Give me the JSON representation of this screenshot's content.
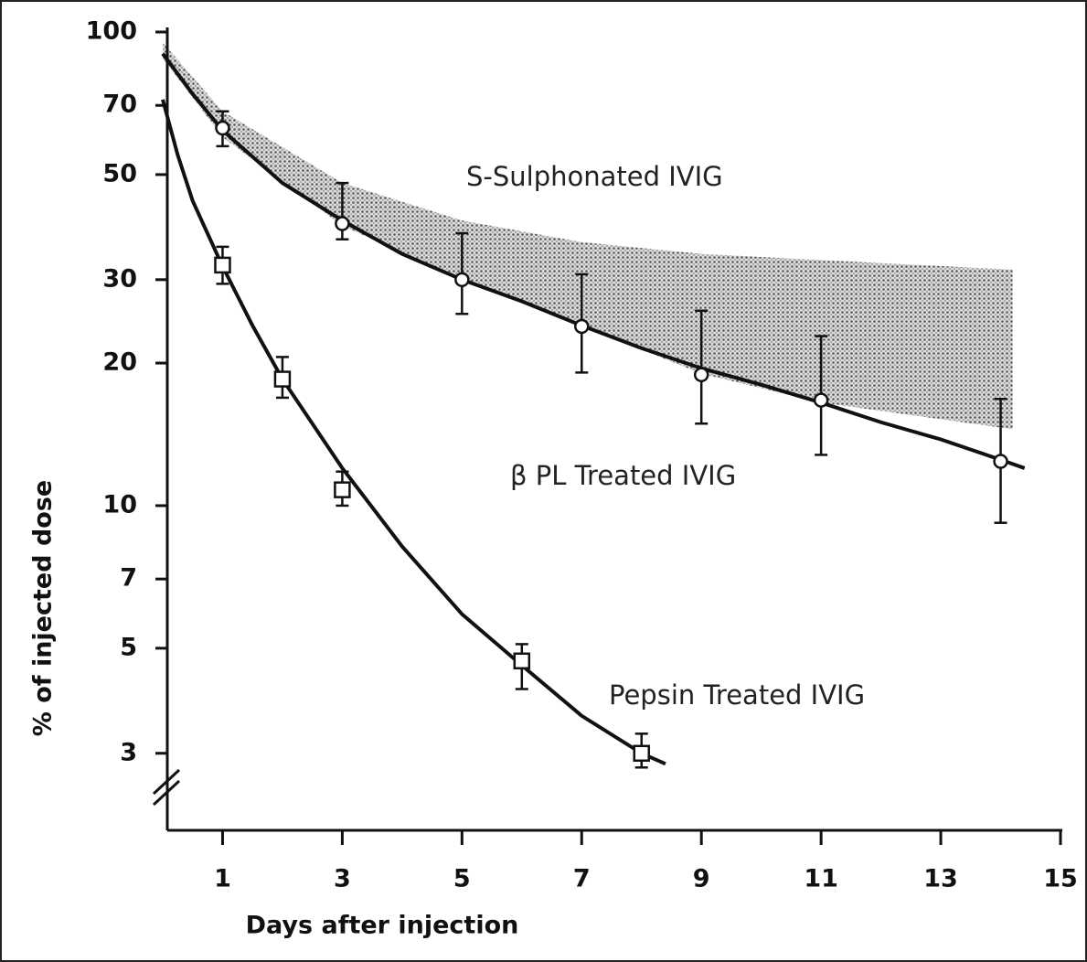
{
  "chart_data": {
    "type": "line",
    "xlabel": "Days after injection",
    "ylabel": "% of injected dose",
    "xlim": [
      0,
      15
    ],
    "xticks": [
      1,
      3,
      5,
      7,
      9,
      11,
      13,
      15
    ],
    "ylim": [
      2.1,
      100
    ],
    "yticks": [
      3,
      5,
      7,
      10,
      20,
      30,
      50,
      70,
      100
    ],
    "log_y": true,
    "band": {
      "name": "S-Sulphonated IVIG",
      "color": "#555555",
      "x": [
        0,
        1,
        3,
        5,
        7,
        9,
        11,
        14.2
      ],
      "upper": [
        95,
        68,
        48,
        40,
        36,
        34,
        33,
        31.5
      ],
      "lower": [
        88,
        60,
        39,
        30,
        24,
        19,
        16.5,
        14.5
      ]
    },
    "series": [
      {
        "name": "β PL Treated IVIG",
        "color": "#111111",
        "marker": "circle",
        "x": [
          1,
          3,
          5,
          7,
          9,
          11,
          14
        ],
        "values": [
          62.7,
          39.4,
          30,
          23.9,
          18.9,
          16.7,
          12.4
        ],
        "lower": [
          57.4,
          36.5,
          25.4,
          19.1,
          14.9,
          12.8,
          9.2
        ],
        "upper": [
          68,
          48,
          37.6,
          30.8,
          25.8,
          22.8,
          16.8
        ],
        "fit_x": [
          0,
          0.5,
          1,
          2,
          3,
          4,
          5,
          6,
          7,
          8,
          9,
          10,
          11,
          12,
          13,
          14,
          14.4
        ],
        "fit": [
          90,
          74,
          62,
          48,
          40,
          34,
          30,
          27,
          24,
          21.5,
          19.5,
          18,
          16.5,
          15,
          13.8,
          12.5,
          12
        ]
      },
      {
        "name": "Pepsin Treated IVIG",
        "color": "#111111",
        "marker": "square",
        "x": [
          1,
          2,
          3,
          6,
          8
        ],
        "values": [
          32.2,
          18.5,
          10.8,
          4.7,
          3.0
        ],
        "lower": [
          29.4,
          16.9,
          10.0,
          4.1,
          2.8
        ],
        "upper": [
          35.2,
          20.6,
          11.8,
          5.1,
          3.3
        ],
        "fit_x": [
          0,
          0.25,
          0.5,
          1,
          1.5,
          2,
          3,
          4,
          5,
          6,
          7,
          8,
          8.4
        ],
        "fit": [
          72,
          55,
          44,
          32,
          24,
          18.5,
          12,
          8.2,
          5.9,
          4.6,
          3.6,
          3.0,
          2.85
        ]
      }
    ]
  }
}
